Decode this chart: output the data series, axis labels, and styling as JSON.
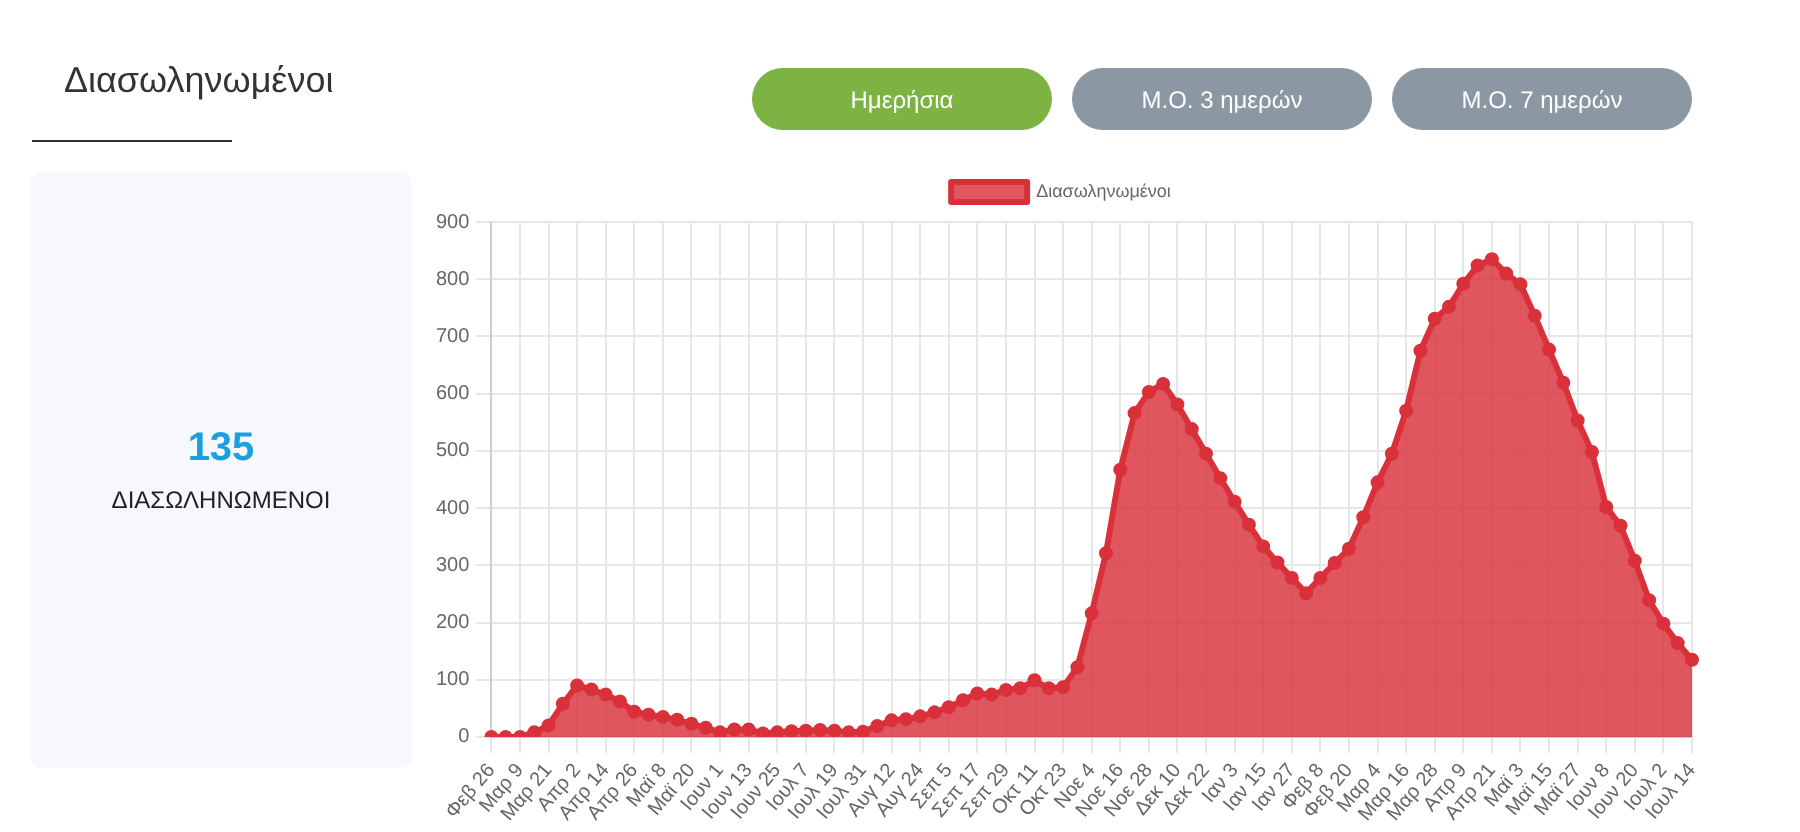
{
  "chart_data": [
    {
      "type": "other",
      "title": "Διασωληνωμένοι",
      "annotations": [
        "Ημερήσια",
        "Μ.Ο. 3 ημερών",
        "Μ.Ο. 7 ημερών",
        "135",
        "ΔΙΑΣΩΛΗΝΩΜΕΝΟΙ"
      ]
    },
    {
      "type": "area",
      "legend": "top",
      "grid": true,
      "marker": "circle",
      "ylim": [
        0,
        900
      ],
      "yticks": [
        0,
        100,
        200,
        300,
        400,
        500,
        600,
        700,
        800,
        900
      ],
      "categories": [
        "Φεβ 26",
        null,
        "Μαρ 9",
        null,
        "Μαρ 21",
        null,
        "Απρ 2",
        null,
        "Απρ 14",
        null,
        "Απρ 26",
        null,
        "Μαϊ 8",
        null,
        "Μαϊ 20",
        null,
        "Ιουν 1",
        null,
        "Ιουν 13",
        null,
        "Ιουν 25",
        null,
        "Ιουλ 7",
        null,
        "Ιουλ 19",
        null,
        "Ιουλ 31",
        null,
        "Αυγ 12",
        null,
        "Αυγ 24",
        null,
        "Σεπ 5",
        null,
        "Σεπ 17",
        null,
        "Σεπ 29",
        null,
        "Οκτ 11",
        null,
        "Οκτ 23",
        null,
        "Νοε 4",
        null,
        "Νοε 16",
        null,
        "Νοε 28",
        null,
        "Δεκ 10",
        null,
        "Δεκ 22",
        null,
        "Ιαν 3",
        null,
        "Ιαν 15",
        null,
        "Ιαν 27",
        null,
        "Φεβ 8",
        null,
        "Φεβ 20",
        null,
        "Μαρ 4",
        null,
        "Μαρ 16",
        null,
        "Μαρ 28",
        null,
        "Απρ 9",
        null,
        "Απρ 21",
        null,
        "Μαϊ 3",
        null,
        "Μαϊ 15",
        null,
        "Μαϊ 27",
        null,
        "Ιουν 8",
        null,
        "Ιουν 20",
        null,
        "Ιουλ 2",
        null,
        "Ιουλ 14"
      ],
      "series": [
        {
          "name": "Διασωληνωμένοι",
          "color": "#d9303a",
          "values": [
            0,
            0,
            0,
            8,
            20,
            58,
            90,
            83,
            74,
            62,
            44,
            39,
            35,
            30,
            23,
            16,
            8,
            13,
            13,
            6,
            8,
            10,
            11,
            12,
            11,
            8,
            9,
            19,
            29,
            31,
            36,
            43,
            52,
            64,
            76,
            74,
            82,
            85,
            99,
            85,
            87,
            122,
            216,
            321,
            467,
            566,
            603,
            617,
            581,
            538,
            495,
            452,
            411,
            371,
            333,
            305,
            278,
            251,
            278,
            304,
            329,
            384,
            445,
            495,
            570,
            675,
            731,
            752,
            792,
            824,
            835,
            810,
            791,
            736,
            677,
            619,
            553,
            498,
            402,
            369,
            308,
            239,
            198,
            164,
            135
          ]
        }
      ]
    }
  ]
}
